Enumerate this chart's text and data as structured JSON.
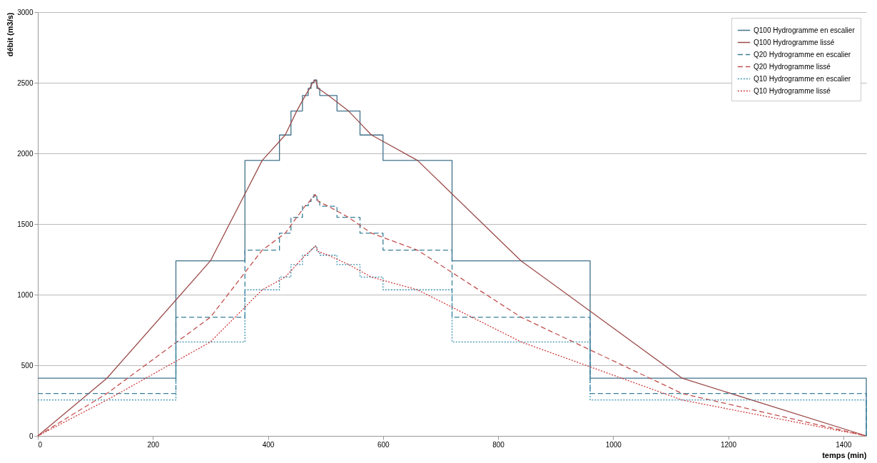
{
  "chart_data": {
    "type": "line",
    "xlabel": "temps (min)",
    "ylabel": "débit (m3/s)",
    "xlim": [
      0,
      1440
    ],
    "xticks": [
      0,
      200,
      400,
      600,
      800,
      1000,
      1200,
      1400
    ],
    "ylim": [
      0,
      3000
    ],
    "yticks": [
      0,
      500,
      1000,
      1500,
      2000,
      2500,
      3000
    ],
    "grid": "y",
    "legend": "top right",
    "series": [
      {
        "name": "Q100 Hydrogramme en escalier",
        "type": "step",
        "color": "#41718a",
        "line_style": "solid",
        "x": [
          0,
          240,
          360,
          420,
          440,
          460,
          470,
          475,
          480,
          485,
          490,
          520,
          560,
          600,
          720,
          960,
          1440,
          1440
        ],
        "values": [
          408,
          1239,
          1950,
          2130,
          2300,
          2410,
          2460,
          2500,
          2520,
          2460,
          2410,
          2300,
          2130,
          1950,
          1239,
          408,
          408,
          0
        ]
      },
      {
        "name": "Q100 Hydrogramme lissé",
        "color": "#9a4a48",
        "line_style": "solid",
        "x": [
          0,
          120,
          300,
          390,
          430,
          450,
          465,
          472.5,
          477.5,
          482.5,
          487.5,
          505,
          540,
          580,
          660,
          840,
          1120,
          1440
        ],
        "values": [
          0,
          408,
          1239,
          1950,
          2130,
          2300,
          2410,
          2460,
          2500,
          2520,
          2460,
          2410,
          2300,
          2130,
          1950,
          1239,
          408,
          0
        ]
      },
      {
        "name": "Q20 Hydrogramme en escalier",
        "type": "step",
        "color": "#3a7f99",
        "line_style": "dashed",
        "x": [
          0,
          240,
          360,
          420,
          440,
          460,
          470,
          475,
          480,
          485,
          490,
          520,
          560,
          600,
          720,
          960,
          1440,
          1440
        ],
        "values": [
          300,
          840,
          1315,
          1435,
          1547,
          1629,
          1660,
          1690,
          1707,
          1660,
          1626,
          1547,
          1435,
          1315,
          840,
          300,
          300,
          0
        ]
      },
      {
        "name": "Q20 Hydrogramme lissé",
        "color": "#c0504d",
        "line_style": "dashed",
        "x": [
          0,
          120,
          300,
          390,
          430,
          450,
          465,
          472.5,
          477.5,
          482.5,
          487.5,
          505,
          540,
          580,
          660,
          840,
          1120,
          1440
        ],
        "values": [
          0,
          300,
          840,
          1315,
          1435,
          1547,
          1629,
          1660,
          1690,
          1707,
          1660,
          1626,
          1547,
          1435,
          1315,
          840,
          300,
          0
        ]
      },
      {
        "name": "Q10 Hydrogramme en escalier",
        "type": "step",
        "color": "#3b8fae",
        "line_style": "dotted",
        "x": [
          0,
          240,
          360,
          420,
          440,
          460,
          470,
          475,
          480,
          485,
          490,
          520,
          560,
          600,
          720,
          960,
          1440,
          1440
        ],
        "values": [
          254,
          665,
          1034,
          1124,
          1213,
          1279,
          1305,
          1325,
          1344,
          1305,
          1279,
          1213,
          1124,
          1034,
          665,
          254,
          254,
          0
        ]
      },
      {
        "name": "Q10 Hydrogramme lissé",
        "color": "#d0393b",
        "line_style": "dotted",
        "x": [
          0,
          120,
          300,
          390,
          430,
          450,
          465,
          472.5,
          477.5,
          482.5,
          487.5,
          505,
          540,
          580,
          660,
          840,
          1120,
          1440
        ],
        "values": [
          0,
          254,
          665,
          1034,
          1124,
          1213,
          1279,
          1305,
          1325,
          1344,
          1305,
          1279,
          1213,
          1124,
          1034,
          665,
          254,
          0
        ]
      }
    ]
  }
}
